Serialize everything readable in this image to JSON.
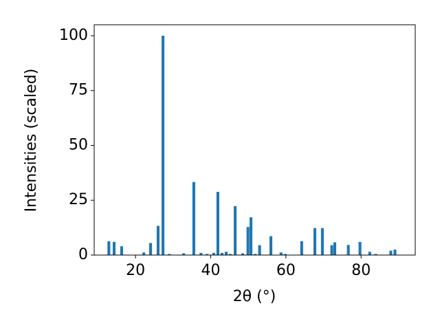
{
  "chart_data": {
    "type": "bar",
    "x_label": "2θ (°)",
    "y_label": "Intensities (scaled)",
    "color": "#1f77b4",
    "x": [
      12.9,
      14.3,
      16.3,
      22.2,
      24.0,
      26.0,
      27.3,
      29.0,
      32.8,
      35.5,
      37.4,
      39.0,
      40.8,
      41.9,
      43.0,
      44.1,
      45.2,
      46.5,
      48.5,
      49.9,
      50.7,
      51.8,
      53.0,
      56.0,
      58.7,
      59.8,
      64.2,
      67.7,
      69.7,
      72.2,
      73.0,
      76.6,
      79.7,
      82.3,
      83.9,
      87.9,
      89.0
    ],
    "values": [
      6.3,
      6.0,
      4.0,
      1.2,
      5.5,
      13.3,
      100,
      0.5,
      0.8,
      33.3,
      1.0,
      0.5,
      1.0,
      28.8,
      1.0,
      1.5,
      0.5,
      22.3,
      0.8,
      12.8,
      17.2,
      0.5,
      4.5,
      8.6,
      1.2,
      0.5,
      6.3,
      12.3,
      12.3,
      4.5,
      5.8,
      4.6,
      6.0,
      1.5,
      0.5,
      2.0,
      2.5
    ],
    "xlim": [
      9,
      94.4
    ],
    "ylim": [
      0,
      105
    ],
    "xticks": [
      20,
      40,
      60,
      80
    ],
    "yticks": [
      0,
      25,
      50,
      75,
      100
    ]
  }
}
